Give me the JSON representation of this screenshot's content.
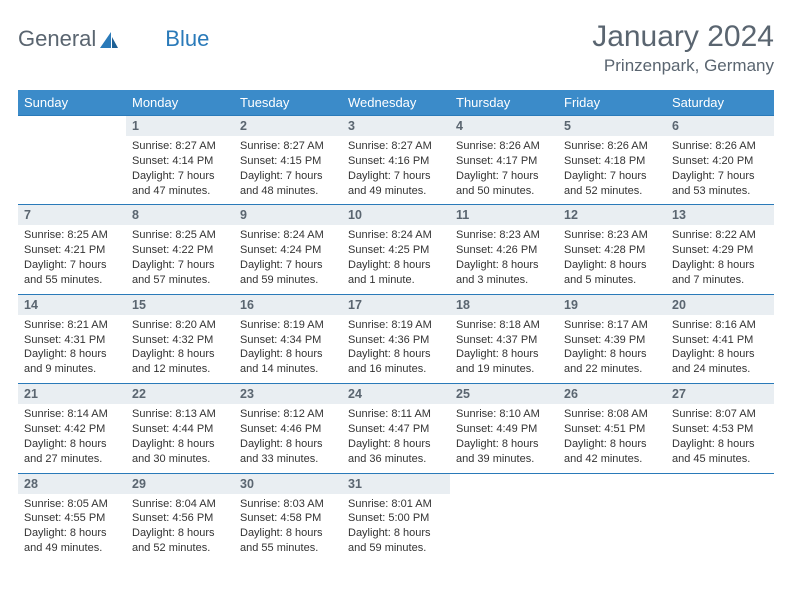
{
  "brand": {
    "part1": "General",
    "part2": "Blue"
  },
  "title": "January 2024",
  "location": "Prinzenpark, Germany",
  "colors": {
    "header_bg": "#3b8bc9",
    "header_text": "#ffffff",
    "daynum_bg": "#e9eef2",
    "daynum_border": "#2a7ab9",
    "text": "#333333",
    "muted": "#5a6570"
  },
  "typography": {
    "title_fontsize": 30,
    "location_fontsize": 17,
    "dayheader_fontsize": 13,
    "daynum_fontsize": 12.5,
    "cell_fontsize": 11
  },
  "day_headers": [
    "Sunday",
    "Monday",
    "Tuesday",
    "Wednesday",
    "Thursday",
    "Friday",
    "Saturday"
  ],
  "weeks": [
    {
      "nums": [
        "",
        "1",
        "2",
        "3",
        "4",
        "5",
        "6"
      ],
      "cells": [
        {
          "empty": true
        },
        {
          "sunrise": "Sunrise: 8:27 AM",
          "sunset": "Sunset: 4:14 PM",
          "day1": "Daylight: 7 hours",
          "day2": "and 47 minutes."
        },
        {
          "sunrise": "Sunrise: 8:27 AM",
          "sunset": "Sunset: 4:15 PM",
          "day1": "Daylight: 7 hours",
          "day2": "and 48 minutes."
        },
        {
          "sunrise": "Sunrise: 8:27 AM",
          "sunset": "Sunset: 4:16 PM",
          "day1": "Daylight: 7 hours",
          "day2": "and 49 minutes."
        },
        {
          "sunrise": "Sunrise: 8:26 AM",
          "sunset": "Sunset: 4:17 PM",
          "day1": "Daylight: 7 hours",
          "day2": "and 50 minutes."
        },
        {
          "sunrise": "Sunrise: 8:26 AM",
          "sunset": "Sunset: 4:18 PM",
          "day1": "Daylight: 7 hours",
          "day2": "and 52 minutes."
        },
        {
          "sunrise": "Sunrise: 8:26 AM",
          "sunset": "Sunset: 4:20 PM",
          "day1": "Daylight: 7 hours",
          "day2": "and 53 minutes."
        }
      ]
    },
    {
      "nums": [
        "7",
        "8",
        "9",
        "10",
        "11",
        "12",
        "13"
      ],
      "cells": [
        {
          "sunrise": "Sunrise: 8:25 AM",
          "sunset": "Sunset: 4:21 PM",
          "day1": "Daylight: 7 hours",
          "day2": "and 55 minutes."
        },
        {
          "sunrise": "Sunrise: 8:25 AM",
          "sunset": "Sunset: 4:22 PM",
          "day1": "Daylight: 7 hours",
          "day2": "and 57 minutes."
        },
        {
          "sunrise": "Sunrise: 8:24 AM",
          "sunset": "Sunset: 4:24 PM",
          "day1": "Daylight: 7 hours",
          "day2": "and 59 minutes."
        },
        {
          "sunrise": "Sunrise: 8:24 AM",
          "sunset": "Sunset: 4:25 PM",
          "day1": "Daylight: 8 hours",
          "day2": "and 1 minute."
        },
        {
          "sunrise": "Sunrise: 8:23 AM",
          "sunset": "Sunset: 4:26 PM",
          "day1": "Daylight: 8 hours",
          "day2": "and 3 minutes."
        },
        {
          "sunrise": "Sunrise: 8:23 AM",
          "sunset": "Sunset: 4:28 PM",
          "day1": "Daylight: 8 hours",
          "day2": "and 5 minutes."
        },
        {
          "sunrise": "Sunrise: 8:22 AM",
          "sunset": "Sunset: 4:29 PM",
          "day1": "Daylight: 8 hours",
          "day2": "and 7 minutes."
        }
      ]
    },
    {
      "nums": [
        "14",
        "15",
        "16",
        "17",
        "18",
        "19",
        "20"
      ],
      "cells": [
        {
          "sunrise": "Sunrise: 8:21 AM",
          "sunset": "Sunset: 4:31 PM",
          "day1": "Daylight: 8 hours",
          "day2": "and 9 minutes."
        },
        {
          "sunrise": "Sunrise: 8:20 AM",
          "sunset": "Sunset: 4:32 PM",
          "day1": "Daylight: 8 hours",
          "day2": "and 12 minutes."
        },
        {
          "sunrise": "Sunrise: 8:19 AM",
          "sunset": "Sunset: 4:34 PM",
          "day1": "Daylight: 8 hours",
          "day2": "and 14 minutes."
        },
        {
          "sunrise": "Sunrise: 8:19 AM",
          "sunset": "Sunset: 4:36 PM",
          "day1": "Daylight: 8 hours",
          "day2": "and 16 minutes."
        },
        {
          "sunrise": "Sunrise: 8:18 AM",
          "sunset": "Sunset: 4:37 PM",
          "day1": "Daylight: 8 hours",
          "day2": "and 19 minutes."
        },
        {
          "sunrise": "Sunrise: 8:17 AM",
          "sunset": "Sunset: 4:39 PM",
          "day1": "Daylight: 8 hours",
          "day2": "and 22 minutes."
        },
        {
          "sunrise": "Sunrise: 8:16 AM",
          "sunset": "Sunset: 4:41 PM",
          "day1": "Daylight: 8 hours",
          "day2": "and 24 minutes."
        }
      ]
    },
    {
      "nums": [
        "21",
        "22",
        "23",
        "24",
        "25",
        "26",
        "27"
      ],
      "cells": [
        {
          "sunrise": "Sunrise: 8:14 AM",
          "sunset": "Sunset: 4:42 PM",
          "day1": "Daylight: 8 hours",
          "day2": "and 27 minutes."
        },
        {
          "sunrise": "Sunrise: 8:13 AM",
          "sunset": "Sunset: 4:44 PM",
          "day1": "Daylight: 8 hours",
          "day2": "and 30 minutes."
        },
        {
          "sunrise": "Sunrise: 8:12 AM",
          "sunset": "Sunset: 4:46 PM",
          "day1": "Daylight: 8 hours",
          "day2": "and 33 minutes."
        },
        {
          "sunrise": "Sunrise: 8:11 AM",
          "sunset": "Sunset: 4:47 PM",
          "day1": "Daylight: 8 hours",
          "day2": "and 36 minutes."
        },
        {
          "sunrise": "Sunrise: 8:10 AM",
          "sunset": "Sunset: 4:49 PM",
          "day1": "Daylight: 8 hours",
          "day2": "and 39 minutes."
        },
        {
          "sunrise": "Sunrise: 8:08 AM",
          "sunset": "Sunset: 4:51 PM",
          "day1": "Daylight: 8 hours",
          "day2": "and 42 minutes."
        },
        {
          "sunrise": "Sunrise: 8:07 AM",
          "sunset": "Sunset: 4:53 PM",
          "day1": "Daylight: 8 hours",
          "day2": "and 45 minutes."
        }
      ]
    },
    {
      "nums": [
        "28",
        "29",
        "30",
        "31",
        "",
        "",
        ""
      ],
      "cells": [
        {
          "sunrise": "Sunrise: 8:05 AM",
          "sunset": "Sunset: 4:55 PM",
          "day1": "Daylight: 8 hours",
          "day2": "and 49 minutes."
        },
        {
          "sunrise": "Sunrise: 8:04 AM",
          "sunset": "Sunset: 4:56 PM",
          "day1": "Daylight: 8 hours",
          "day2": "and 52 minutes."
        },
        {
          "sunrise": "Sunrise: 8:03 AM",
          "sunset": "Sunset: 4:58 PM",
          "day1": "Daylight: 8 hours",
          "day2": "and 55 minutes."
        },
        {
          "sunrise": "Sunrise: 8:01 AM",
          "sunset": "Sunset: 5:00 PM",
          "day1": "Daylight: 8 hours",
          "day2": "and 59 minutes."
        },
        {
          "empty": true
        },
        {
          "empty": true
        },
        {
          "empty": true
        }
      ]
    }
  ]
}
